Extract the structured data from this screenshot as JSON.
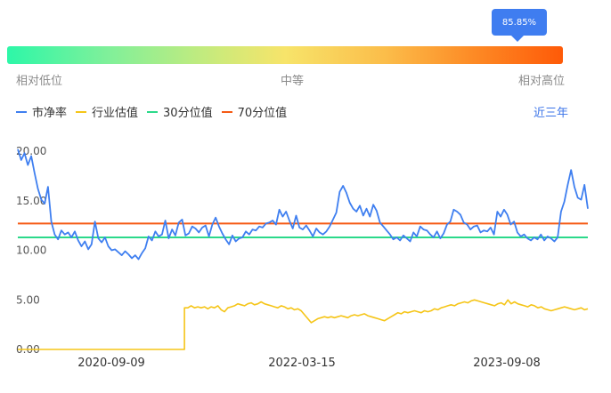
{
  "gauge": {
    "percentile_label": "85.85%",
    "percentile": 0.8585,
    "low_label": "相对低位",
    "mid_label": "中等",
    "high_label": "相对高位",
    "colors": [
      "#2df7a8",
      "#f7e46a",
      "#fe5a08"
    ]
  },
  "range_link": "近三年",
  "chart_data": {
    "type": "line",
    "x_ticks": [
      "2020-09-09",
      "2022-03-15",
      "2023-09-08"
    ],
    "y_ticks": [
      "0.00",
      "5.00",
      "10.00",
      "15.00",
      "20.00"
    ],
    "ylim": [
      0,
      20
    ],
    "grid": false,
    "legend_position": "top-left",
    "series": [
      {
        "name": "市净率",
        "color": "#3f7ff0",
        "values": [
          20.2,
          19.1,
          19.8,
          18.6,
          19.5,
          17.8,
          16.2,
          15.1,
          14.7,
          16.4,
          12.9,
          11.6,
          11.1,
          12.0,
          11.6,
          11.8,
          11.3,
          11.9,
          11.0,
          10.4,
          10.9,
          10.1,
          10.6,
          12.9,
          11.2,
          10.8,
          11.3,
          10.4,
          10.0,
          10.1,
          9.8,
          9.5,
          9.9,
          9.6,
          9.2,
          9.5,
          9.1,
          9.7,
          10.2,
          11.4,
          11.0,
          11.9,
          11.4,
          11.6,
          13.0,
          11.2,
          12.1,
          11.5,
          12.8,
          13.1,
          11.5,
          11.7,
          12.4,
          12.2,
          11.8,
          12.3,
          12.5,
          11.4,
          12.6,
          13.3,
          12.4,
          11.7,
          11.1,
          10.6,
          11.5,
          10.9,
          11.2,
          11.3,
          11.9,
          11.6,
          12.1,
          12.0,
          12.4,
          12.3,
          12.7,
          12.8,
          13.0,
          12.6,
          14.1,
          13.4,
          13.9,
          13.0,
          12.2,
          13.5,
          12.3,
          12.1,
          12.5,
          12.0,
          11.4,
          12.2,
          11.8,
          11.6,
          11.9,
          12.4,
          13.1,
          13.8,
          15.9,
          16.5,
          15.8,
          14.8,
          14.2,
          13.9,
          14.5,
          13.5,
          14.2,
          13.4,
          14.6,
          14.0,
          12.8,
          12.4,
          12.0,
          11.6,
          11.1,
          11.3,
          11.0,
          11.5,
          11.2,
          10.9,
          11.8,
          11.4,
          12.4,
          12.1,
          12.0,
          11.6,
          11.3,
          11.9,
          11.2,
          11.7,
          12.6,
          12.9,
          14.1,
          13.9,
          13.6,
          12.8,
          12.6,
          12.1,
          12.4,
          12.5,
          11.8,
          12.0,
          11.9,
          12.3,
          11.6,
          13.9,
          13.4,
          14.1,
          13.6,
          12.6,
          12.9,
          11.8,
          11.4,
          11.6,
          11.2,
          11.0,
          11.3,
          11.1,
          11.6,
          11.0,
          11.4,
          11.2,
          10.9,
          11.3,
          13.9,
          14.9,
          16.6,
          18.1,
          16.4,
          15.3,
          15.1,
          16.6,
          14.2
        ]
      },
      {
        "name": "行业估值",
        "color": "#f5c518",
        "values": [
          0,
          0,
          0,
          0,
          0,
          0,
          0,
          0,
          0,
          0,
          0,
          0,
          0,
          0,
          0,
          0,
          0,
          0,
          0,
          0,
          0,
          0,
          0,
          0,
          0,
          0,
          0,
          0,
          0,
          0,
          0,
          0,
          0,
          0,
          0,
          0,
          0,
          0,
          0,
          0,
          0,
          0,
          0,
          0,
          0,
          0,
          0,
          0,
          0,
          0,
          0,
          4.2,
          4.4,
          4.2,
          4.3,
          4.2,
          4.3,
          4.1,
          4.3,
          4.2,
          4.4,
          4.0,
          3.8,
          4.2,
          4.3,
          4.4,
          4.6,
          4.5,
          4.4,
          4.6,
          4.7,
          4.5,
          4.6,
          4.8,
          4.6,
          4.5,
          4.4,
          4.3,
          4.2,
          4.4,
          4.3,
          4.1,
          4.2,
          4.0,
          4.1,
          3.9,
          3.5,
          3.1,
          2.7,
          2.9,
          3.1,
          3.2,
          3.3,
          3.2,
          3.3,
          3.2,
          3.3,
          3.4,
          3.3,
          3.2,
          3.4,
          3.5,
          3.4,
          3.5,
          3.6,
          3.4,
          3.3,
          3.2,
          3.1,
          3.0,
          2.9,
          3.1,
          3.3,
          3.5,
          3.7,
          3.6,
          3.8,
          3.7,
          3.8,
          3.9,
          3.8,
          3.7,
          3.9,
          3.8,
          3.9,
          4.1,
          4.0,
          4.2,
          4.3,
          4.4,
          4.5,
          4.4,
          4.6,
          4.7,
          4.8,
          4.7,
          4.9,
          5.0,
          4.9,
          4.8,
          4.7,
          4.6,
          4.5,
          4.4,
          4.6,
          4.7,
          4.5,
          5.0,
          4.6,
          4.8,
          4.6,
          4.5,
          4.4,
          4.3,
          4.5,
          4.4,
          4.2,
          4.3,
          4.1,
          4.0,
          3.9,
          4.0,
          4.1,
          4.2,
          4.3,
          4.2,
          4.1,
          4.0,
          4.1,
          4.2,
          4.0,
          4.1
        ]
      },
      {
        "name": "30分位值",
        "color": "#2bd98a",
        "values": [
          11.3,
          11.3
        ]
      },
      {
        "name": "70分位值",
        "color": "#f55a14",
        "values": [
          12.7,
          12.7
        ]
      }
    ]
  }
}
